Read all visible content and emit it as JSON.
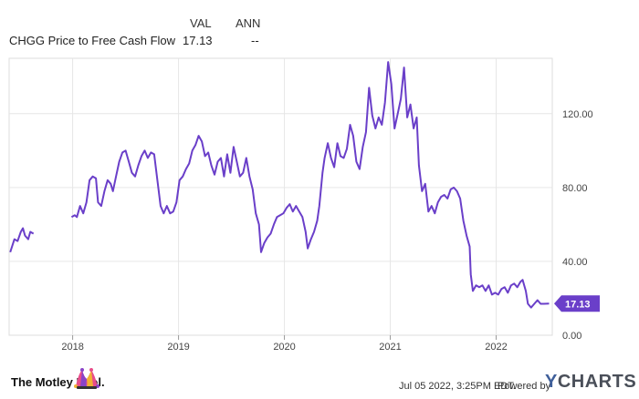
{
  "legend": {
    "col_val": "VAL",
    "col_ann": "ANN",
    "series_name": "CHGG Price to Free Cash Flow",
    "series_val": "17.13",
    "series_ann": "--"
  },
  "footer": {
    "logo_text": "The Motley Fool.",
    "timestamp": "Jul 05 2022, 3:25PM EDT.",
    "powered_by": "Powered by",
    "ycharts_y": "Y",
    "ycharts_rest": "CHARTS"
  },
  "chart_data": {
    "type": "line",
    "title": "",
    "xlabel": "",
    "ylabel": "",
    "ylim": [
      0,
      150
    ],
    "xlim": [
      2017.4,
      2022.53
    ],
    "y_ticks": [
      {
        "value": 0,
        "label": "0.00"
      },
      {
        "value": 40,
        "label": "40.00"
      },
      {
        "value": 80,
        "label": "80.00"
      },
      {
        "value": 120,
        "label": "120.00"
      }
    ],
    "x_ticks": [
      {
        "value": 2018,
        "label": "2018"
      },
      {
        "value": 2019,
        "label": "2019"
      },
      {
        "value": 2020,
        "label": "2020"
      },
      {
        "value": 2021,
        "label": "2021"
      },
      {
        "value": 2022,
        "label": "2022"
      }
    ],
    "grid": true,
    "line_color": "#6a3fc9",
    "last_value_label": "17.13",
    "series": [
      {
        "segments": [
          [
            [
              2017.41,
              45
            ],
            [
              2017.45,
              52
            ],
            [
              2017.48,
              51
            ],
            [
              2017.51,
              56
            ],
            [
              2017.53,
              58
            ],
            [
              2017.55,
              54
            ],
            [
              2017.58,
              52
            ],
            [
              2017.6,
              56
            ],
            [
              2017.63,
              55
            ]
          ],
          [
            [
              2017.99,
              64
            ],
            [
              2018.02,
              65
            ],
            [
              2018.04,
              64
            ],
            [
              2018.07,
              70
            ],
            [
              2018.1,
              66
            ],
            [
              2018.13,
              72
            ],
            [
              2018.16,
              84
            ],
            [
              2018.19,
              86
            ],
            [
              2018.22,
              85
            ],
            [
              2018.24,
              72
            ],
            [
              2018.27,
              70
            ],
            [
              2018.3,
              78
            ],
            [
              2018.33,
              84
            ],
            [
              2018.36,
              82
            ],
            [
              2018.38,
              78
            ],
            [
              2018.41,
              86
            ],
            [
              2018.44,
              94
            ],
            [
              2018.47,
              99
            ],
            [
              2018.5,
              100
            ],
            [
              2018.53,
              94
            ],
            [
              2018.56,
              88
            ],
            [
              2018.59,
              86
            ],
            [
              2018.62,
              92
            ],
            [
              2018.65,
              97
            ],
            [
              2018.68,
              100
            ],
            [
              2018.71,
              96
            ],
            [
              2018.74,
              99
            ],
            [
              2018.77,
              98
            ],
            [
              2018.8,
              84
            ],
            [
              2018.83,
              70
            ],
            [
              2018.86,
              66
            ],
            [
              2018.89,
              70
            ],
            [
              2018.92,
              66
            ],
            [
              2018.95,
              67
            ],
            [
              2018.98,
              72
            ],
            [
              2019.01,
              84
            ],
            [
              2019.04,
              86
            ],
            [
              2019.07,
              90
            ],
            [
              2019.1,
              93
            ],
            [
              2019.13,
              100
            ],
            [
              2019.16,
              103
            ],
            [
              2019.19,
              108
            ],
            [
              2019.22,
              105
            ],
            [
              2019.25,
              97
            ],
            [
              2019.28,
              99
            ],
            [
              2019.31,
              92
            ],
            [
              2019.34,
              87
            ],
            [
              2019.37,
              94
            ],
            [
              2019.4,
              96
            ],
            [
              2019.43,
              86
            ],
            [
              2019.46,
              98
            ],
            [
              2019.49,
              88
            ],
            [
              2019.52,
              102
            ],
            [
              2019.55,
              94
            ],
            [
              2019.58,
              86
            ],
            [
              2019.61,
              88
            ],
            [
              2019.64,
              96
            ],
            [
              2019.67,
              86
            ],
            [
              2019.7,
              79
            ],
            [
              2019.73,
              66
            ],
            [
              2019.76,
              60
            ],
            [
              2019.78,
              45
            ],
            [
              2019.81,
              50
            ],
            [
              2019.84,
              53
            ],
            [
              2019.87,
              55
            ],
            [
              2019.9,
              60
            ],
            [
              2019.93,
              64
            ],
            [
              2019.96,
              65
            ],
            [
              2019.99,
              66
            ],
            [
              2020.02,
              69
            ],
            [
              2020.05,
              71
            ],
            [
              2020.08,
              67
            ],
            [
              2020.11,
              70
            ],
            [
              2020.14,
              67
            ],
            [
              2020.17,
              64
            ],
            [
              2020.2,
              56
            ],
            [
              2020.22,
              47
            ],
            [
              2020.25,
              52
            ],
            [
              2020.28,
              56
            ],
            [
              2020.31,
              62
            ],
            [
              2020.33,
              70
            ],
            [
              2020.36,
              88
            ],
            [
              2020.38,
              96
            ],
            [
              2020.41,
              104
            ],
            [
              2020.44,
              96
            ],
            [
              2020.47,
              91
            ],
            [
              2020.5,
              104
            ],
            [
              2020.53,
              97
            ],
            [
              2020.56,
              96
            ],
            [
              2020.59,
              101
            ],
            [
              2020.62,
              114
            ],
            [
              2020.65,
              108
            ],
            [
              2020.68,
              94
            ],
            [
              2020.71,
              90
            ],
            [
              2020.74,
              102
            ],
            [
              2020.77,
              110
            ],
            [
              2020.8,
              134
            ],
            [
              2020.83,
              119
            ],
            [
              2020.86,
              112
            ],
            [
              2020.89,
              118
            ],
            [
              2020.92,
              114
            ],
            [
              2020.95,
              126
            ],
            [
              2020.98,
              148
            ],
            [
              2021.01,
              136
            ],
            [
              2021.04,
              112
            ],
            [
              2021.07,
              120
            ],
            [
              2021.1,
              128
            ],
            [
              2021.13,
              145
            ],
            [
              2021.16,
              118
            ],
            [
              2021.19,
              125
            ],
            [
              2021.22,
              112
            ],
            [
              2021.25,
              118
            ],
            [
              2021.27,
              92
            ],
            [
              2021.3,
              78
            ],
            [
              2021.33,
              82
            ],
            [
              2021.36,
              67
            ],
            [
              2021.39,
              70
            ],
            [
              2021.42,
              66
            ],
            [
              2021.45,
              72
            ],
            [
              2021.48,
              75
            ],
            [
              2021.51,
              76
            ],
            [
              2021.54,
              74
            ],
            [
              2021.57,
              79
            ],
            [
              2021.6,
              80
            ],
            [
              2021.63,
              78
            ],
            [
              2021.66,
              74
            ],
            [
              2021.69,
              62
            ],
            [
              2021.72,
              54
            ],
            [
              2021.75,
              48
            ],
            [
              2021.76,
              33
            ],
            [
              2021.78,
              24
            ],
            [
              2021.81,
              27
            ],
            [
              2021.84,
              26
            ],
            [
              2021.87,
              27
            ],
            [
              2021.9,
              24
            ],
            [
              2021.93,
              27
            ],
            [
              2021.96,
              22
            ],
            [
              2021.99,
              23
            ],
            [
              2022.02,
              22
            ],
            [
              2022.05,
              25
            ],
            [
              2022.08,
              26
            ],
            [
              2022.11,
              23
            ],
            [
              2022.14,
              27
            ],
            [
              2022.17,
              28
            ],
            [
              2022.2,
              26
            ],
            [
              2022.23,
              29
            ],
            [
              2022.25,
              30
            ],
            [
              2022.28,
              24
            ],
            [
              2022.3,
              17
            ],
            [
              2022.33,
              15
            ],
            [
              2022.36,
              17
            ],
            [
              2022.39,
              19
            ],
            [
              2022.42,
              17
            ],
            [
              2022.45,
              17
            ],
            [
              2022.5,
              17.13
            ]
          ]
        ]
      }
    ]
  }
}
